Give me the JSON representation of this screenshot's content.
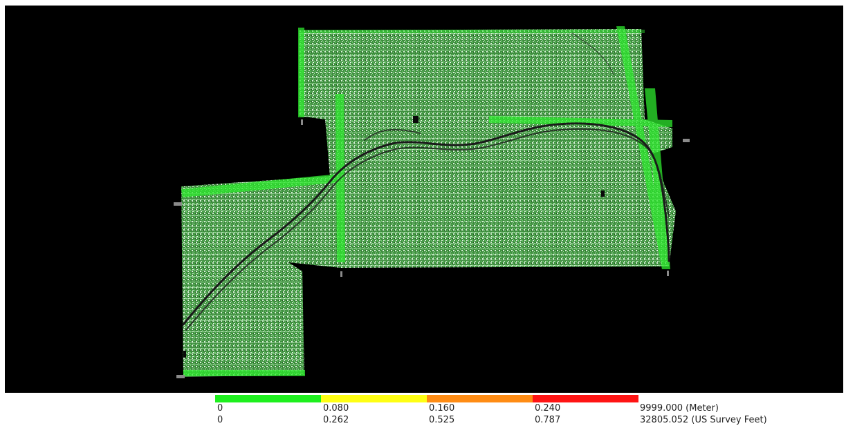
{
  "map": {
    "background": "#000000",
    "point_color": "#5fd35f",
    "swath_color": "#2ee82e",
    "river_color": "#1a1a1a"
  },
  "legend": {
    "swatches": [
      {
        "color": "#1ef01e"
      },
      {
        "color": "#ffff14"
      },
      {
        "color": "#ff8c14"
      },
      {
        "color": "#ff1414"
      }
    ],
    "meter_labels": [
      "0",
      "0.080",
      "0.160",
      "0.240",
      "9999.000 (Meter)"
    ],
    "feet_labels": [
      "0",
      "0.262",
      "0.525",
      "0.787",
      "32805.052 (US Survey Feet)"
    ]
  }
}
